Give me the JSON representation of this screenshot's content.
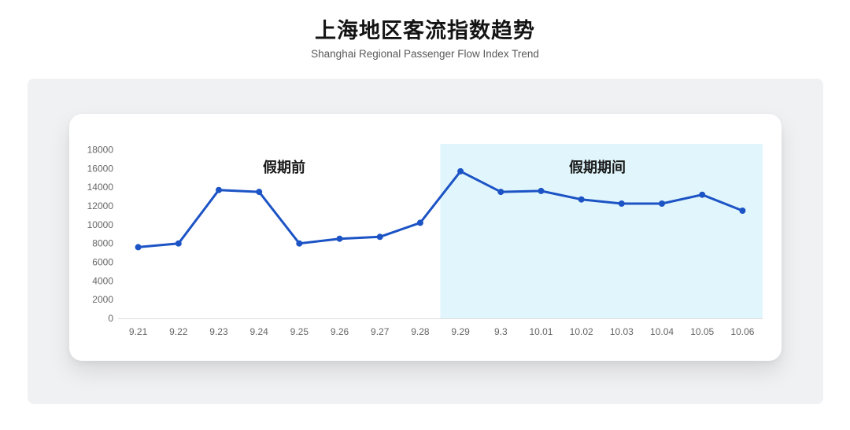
{
  "page": {
    "title": "上海地区客流指数趋势",
    "subtitle": "Shanghai Regional Passenger Flow Index Trend"
  },
  "chart_data": {
    "type": "line",
    "title": "上海地区客流指数趋势",
    "subtitle": "Shanghai Regional Passenger Flow Index Trend",
    "categories": [
      "9.21",
      "9.22",
      "9.23",
      "9.24",
      "9.25",
      "9.26",
      "9.27",
      "9.28",
      "9.29",
      "9.3",
      "10.01",
      "10.02",
      "10.03",
      "10.04",
      "10.05",
      "10.06"
    ],
    "values": [
      7600,
      8000,
      13700,
      13500,
      8000,
      8500,
      8700,
      10200,
      15700,
      13500,
      13600,
      12700,
      12250,
      12250,
      13200,
      11500
    ],
    "xlabel": "",
    "ylabel": "",
    "ylim": [
      0,
      18000
    ],
    "yticks": [
      0,
      2000,
      4000,
      6000,
      8000,
      10000,
      12000,
      14000,
      16000,
      18000
    ],
    "grid": false,
    "legend": "none",
    "line_color": "#1c53c5",
    "annotations": [
      {
        "text": "假期前"
      },
      {
        "text": "假期期间"
      }
    ],
    "highlight_region": {
      "label": "假期期间",
      "start_category": "9.29",
      "end_category": "10.06",
      "start_index": 8,
      "end_index": 15,
      "color": "#e0f6fc"
    }
  },
  "colors": {
    "line": "#1c53c5",
    "highlight_band": "#e0f6fc",
    "panel_bg": "#f0f1f3",
    "card_bg": "#ffffff",
    "axis_line": "#dcdcdc",
    "tick_label": "#666666",
    "annotation_text": "#1a1a1a",
    "title_text": "#141414",
    "subtitle_text": "#595959"
  }
}
